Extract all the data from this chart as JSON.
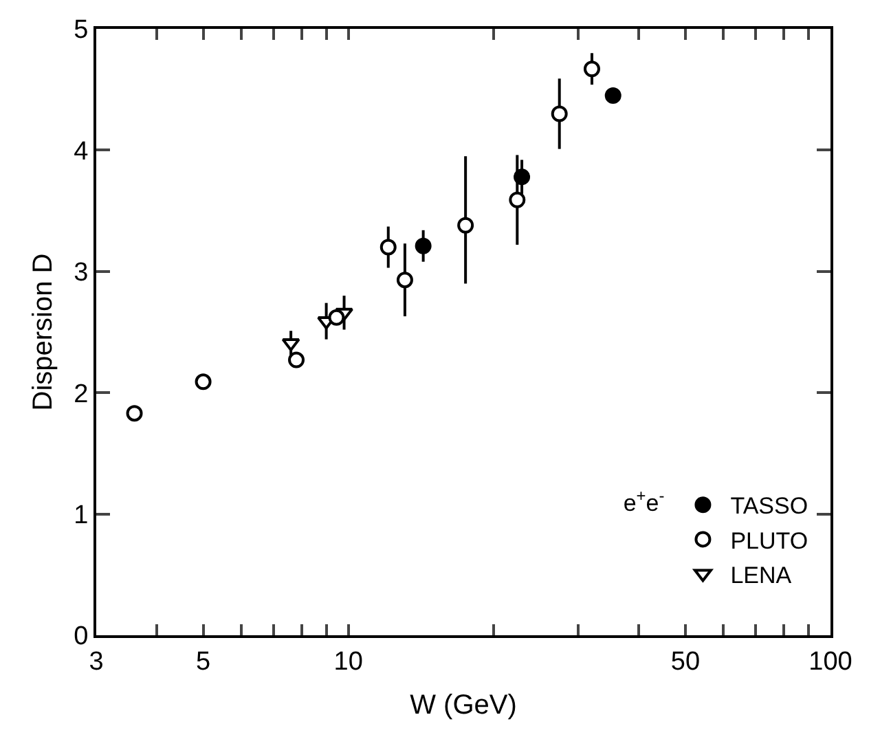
{
  "chart_data": {
    "type": "scatter",
    "xlabel": "W (GeV)",
    "ylabel": "Dispersion D",
    "log": "x",
    "legend": "bottom right",
    "legend_title": "e$^{+}$e$^{-}$",
    "xlim": [
      3,
      100
    ],
    "ylim": [
      0,
      5
    ],
    "xticks": [
      3,
      {
        "value": 4,
        "label": null
      },
      5,
      {
        "value": 6,
        "label": null
      },
      {
        "value": 7,
        "label": null
      },
      {
        "value": 8,
        "label": null
      },
      {
        "value": 9,
        "label": null
      },
      10,
      {
        "value": 20,
        "label": null
      },
      {
        "value": 30,
        "label": null
      },
      {
        "value": 40,
        "label": null
      },
      50,
      {
        "value": 60,
        "label": null
      },
      {
        "value": 70,
        "label": null
      },
      {
        "value": 80,
        "label": null
      },
      {
        "value": 90,
        "label": null
      },
      100
    ],
    "yticks": [
      0,
      1,
      2,
      3,
      4,
      5
    ],
    "series": [
      {
        "name": "TASSO",
        "color": "#000000",
        "marker": "circle",
        "x": [
          14.3,
          22.9,
          35.4
        ],
        "values": [
          3.21,
          3.78,
          4.45
        ],
        "errors": [
          0.13,
          0.14,
          null
        ]
      },
      {
        "name": "PLUTO",
        "color": "#ffffff",
        "marker": "circle",
        "x": [
          3.6,
          5.0,
          7.8,
          9.45,
          12.1,
          13.1,
          17.5,
          22.4,
          27.4,
          32.0
        ],
        "values": [
          1.83,
          2.09,
          2.27,
          2.62,
          3.2,
          2.93,
          3.38,
          3.59,
          4.3,
          4.67
        ],
        "errors": [
          null,
          null,
          null,
          null,
          0.17,
          0.3,
          [
            2.9,
            3.95
          ],
          0.37,
          0.29,
          0.13
        ]
      },
      {
        "name": "LENA",
        "color": "#ffffff",
        "marker": "triangle",
        "x": [
          7.6,
          9.0,
          9.8
        ],
        "values": [
          2.41,
          2.59,
          2.66
        ],
        "errors": [
          0.1,
          0.15,
          0.14
        ]
      }
    ]
  }
}
